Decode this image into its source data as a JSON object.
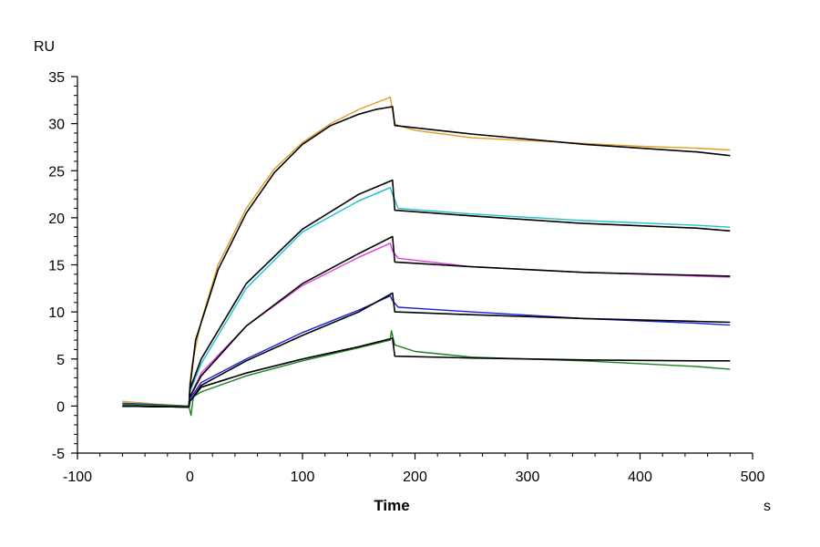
{
  "chart_data": {
    "type": "line",
    "title": "",
    "xlabel": "Time",
    "xunit": "s",
    "ylabel": "RU",
    "xlim": [
      -100,
      500
    ],
    "ylim": [
      -5,
      35
    ],
    "x_ticks": [
      -100,
      0,
      100,
      200,
      300,
      400,
      500
    ],
    "y_ticks": [
      -5,
      0,
      5,
      10,
      15,
      20,
      25,
      30,
      35
    ],
    "grid": false,
    "legend": "none",
    "series": [
      {
        "color": "#E0A020",
        "x": [
          -60,
          -30,
          -1,
          0,
          2,
          10,
          25,
          50,
          75,
          100,
          125,
          150,
          165,
          178,
          180,
          182,
          185,
          200,
          250,
          300,
          350,
          400,
          450,
          480
        ],
        "y": [
          0.5,
          0.2,
          0.0,
          2.5,
          4.5,
          9,
          15,
          21,
          25.2,
          28,
          30,
          31.5,
          32.2,
          32.8,
          31.5,
          30.0,
          29.8,
          29.3,
          28.5,
          28.2,
          27.9,
          27.6,
          27.4,
          27.2
        ]
      },
      {
        "color": "#000000",
        "x": [
          -60,
          -1,
          0,
          5,
          25,
          50,
          75,
          100,
          125,
          150,
          165,
          180,
          182,
          250,
          350,
          450,
          480
        ],
        "y": [
          0.0,
          -0.1,
          2.0,
          7.0,
          14.5,
          20.5,
          24.8,
          27.8,
          29.8,
          31.0,
          31.5,
          31.8,
          29.8,
          28.9,
          27.8,
          27.0,
          26.6
        ]
      },
      {
        "color": "#20C0D0",
        "x": [
          -60,
          -1,
          0,
          10,
          50,
          100,
          150,
          178,
          180,
          185,
          250,
          350,
          450,
          480
        ],
        "y": [
          0.1,
          0.0,
          1.5,
          4.5,
          12.5,
          18.5,
          21.8,
          23.2,
          22.5,
          21.0,
          20.4,
          19.7,
          19.2,
          19.0
        ]
      },
      {
        "color": "#000000",
        "x": [
          -60,
          -1,
          0,
          10,
          50,
          100,
          150,
          180,
          182,
          250,
          350,
          450,
          480
        ],
        "y": [
          0.0,
          -0.1,
          1.8,
          5.0,
          13.0,
          18.8,
          22.5,
          24.0,
          20.8,
          20.2,
          19.4,
          18.9,
          18.6
        ]
      },
      {
        "color": "#E040E0",
        "x": [
          -60,
          -1,
          0,
          10,
          50,
          100,
          150,
          178,
          180,
          185,
          250,
          350,
          450,
          480
        ],
        "y": [
          0.3,
          0.0,
          1.0,
          3.5,
          8.5,
          12.8,
          15.8,
          17.3,
          16.5,
          15.7,
          14.8,
          14.2,
          13.8,
          13.7
        ]
      },
      {
        "color": "#000000",
        "x": [
          -60,
          -1,
          0,
          10,
          50,
          100,
          150,
          180,
          182,
          250,
          350,
          450,
          480
        ],
        "y": [
          0.0,
          -0.1,
          1.0,
          3.2,
          8.5,
          13.0,
          16.2,
          18.0,
          15.3,
          14.8,
          14.2,
          13.9,
          13.8
        ]
      },
      {
        "color": "#2020E0",
        "x": [
          -60,
          -1,
          0,
          10,
          50,
          100,
          150,
          178,
          180,
          185,
          250,
          350,
          450,
          480
        ],
        "y": [
          0.3,
          0.0,
          0.8,
          2.5,
          5.0,
          7.8,
          10.2,
          11.7,
          11.2,
          10.5,
          10.0,
          9.3,
          8.8,
          8.6
        ]
      },
      {
        "color": "#000000",
        "x": [
          -60,
          -1,
          0,
          10,
          50,
          100,
          150,
          180,
          182,
          250,
          350,
          450,
          480
        ],
        "y": [
          0.0,
          -0.1,
          0.5,
          2.2,
          4.8,
          7.5,
          10.0,
          12.0,
          10.0,
          9.7,
          9.3,
          9.0,
          8.9
        ]
      },
      {
        "color": "#208020",
        "x": [
          -60,
          -1,
          1,
          3,
          10,
          50,
          100,
          150,
          178,
          179,
          182,
          200,
          250,
          300,
          350,
          400,
          450,
          480
        ],
        "y": [
          0.2,
          0.0,
          -1.0,
          1.0,
          1.5,
          3.2,
          4.8,
          6.2,
          7.0,
          8.0,
          6.5,
          5.8,
          5.2,
          5.0,
          4.8,
          4.5,
          4.2,
          3.9
        ]
      },
      {
        "color": "#000000",
        "x": [
          -60,
          -1,
          0,
          10,
          50,
          100,
          150,
          180,
          182,
          250,
          350,
          450,
          480
        ],
        "y": [
          0.0,
          -0.1,
          0.5,
          2.0,
          3.5,
          5.0,
          6.3,
          7.2,
          5.3,
          5.1,
          4.9,
          4.8,
          4.8
        ]
      }
    ]
  }
}
